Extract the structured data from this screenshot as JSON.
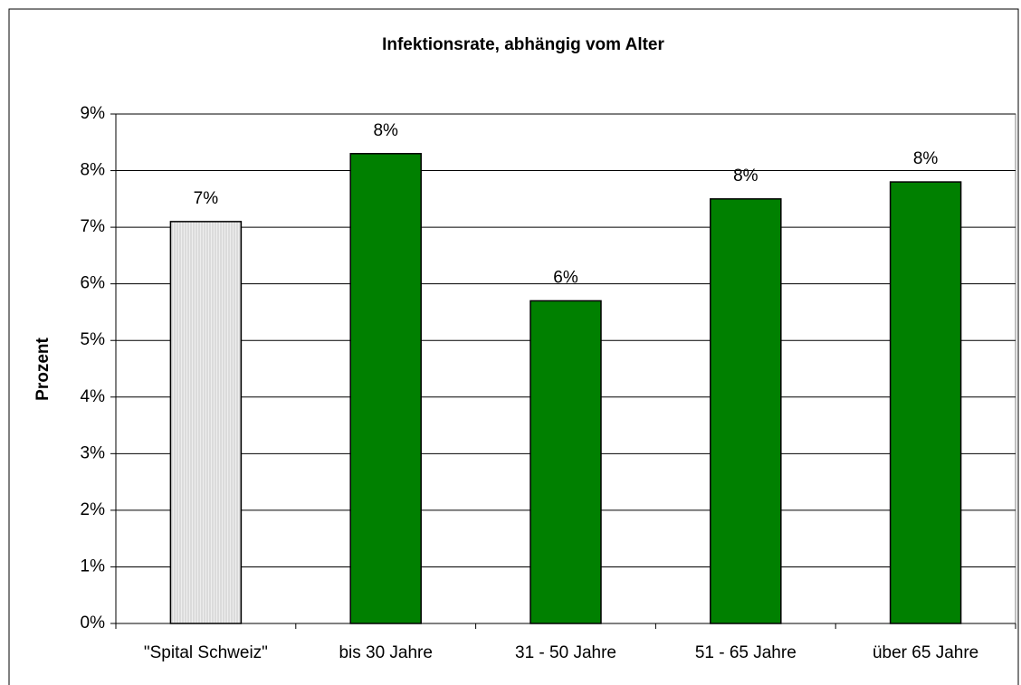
{
  "chart_data": {
    "type": "bar",
    "title": "Infektionsrate, abhängig vom Alter",
    "ylabel": "Prozent",
    "categories": [
      "\"Spital Schweiz\"",
      "bis 30 Jahre",
      "31 - 50 Jahre",
      "51 - 65 Jahre",
      "über 65 Jahre"
    ],
    "values": [
      7.1,
      8.3,
      5.7,
      7.5,
      7.8
    ],
    "value_labels": [
      "7%",
      "8%",
      "6%",
      "8%",
      "8%"
    ],
    "colors": [
      "#e6e6e6",
      "#008000",
      "#008000",
      "#008000",
      "#008000"
    ],
    "ylim": [
      0,
      9
    ],
    "yticks": [
      {
        "value": 0,
        "label": "0%"
      },
      {
        "value": 1,
        "label": "1%"
      },
      {
        "value": 2,
        "label": "2%"
      },
      {
        "value": 3,
        "label": "3%"
      },
      {
        "value": 4,
        "label": "4%"
      },
      {
        "value": 5,
        "label": "5%"
      },
      {
        "value": 6,
        "label": "6%"
      },
      {
        "value": 7,
        "label": "7%"
      },
      {
        "value": 8,
        "label": "8%"
      },
      {
        "value": 9,
        "label": "9%"
      }
    ],
    "grid": true
  }
}
